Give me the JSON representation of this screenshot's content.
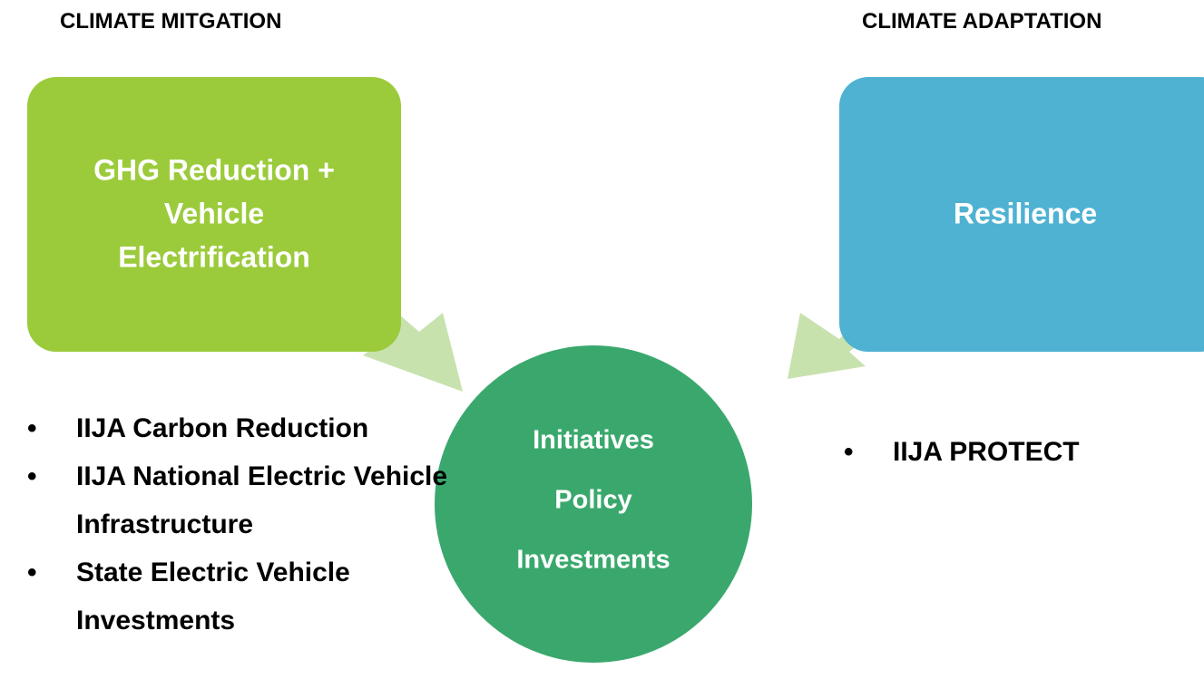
{
  "mitigation": {
    "heading": "CLIMATE MITGATION",
    "box_lines": [
      "GHG Reduction +",
      "Vehicle",
      "Electrification"
    ],
    "items": [
      "IIJA Carbon Reduction",
      "IIJA National Electric Vehicle Infrastructure",
      "State Electric Vehicle Investments"
    ]
  },
  "adaptation": {
    "heading": "CLIMATE ADAPTATION",
    "box_lines": [
      "Resilience"
    ],
    "items": [
      "IIJA PROTECT"
    ]
  },
  "center": {
    "lines": [
      "Initiatives",
      "Policy",
      "Investments"
    ]
  }
}
